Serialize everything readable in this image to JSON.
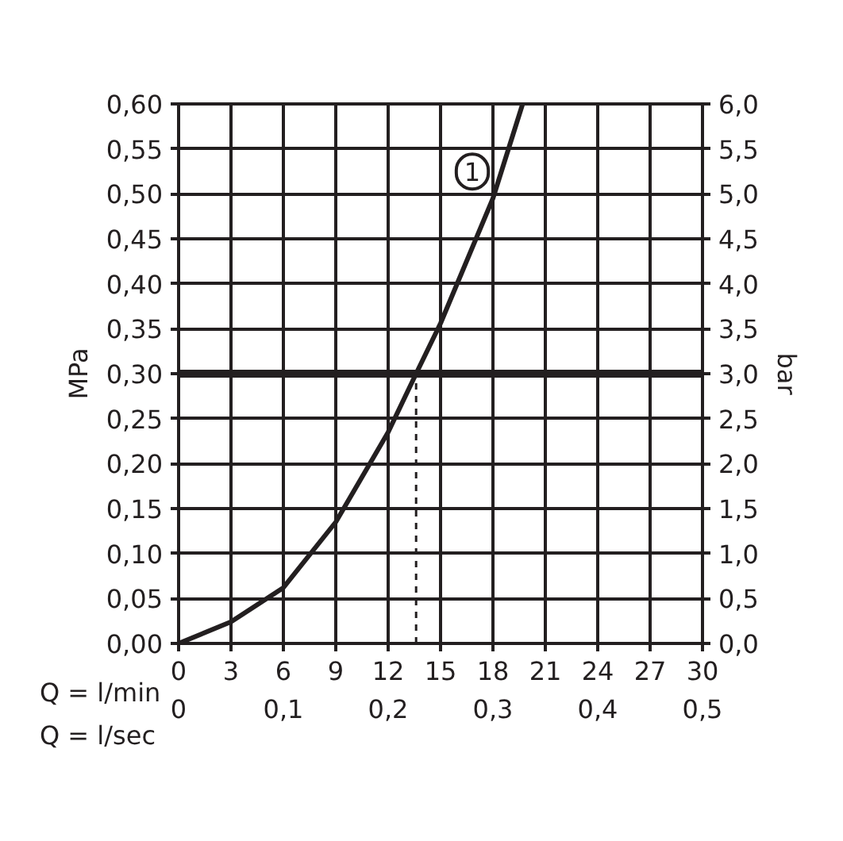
{
  "chart_data": {
    "type": "line",
    "x": [
      0,
      3,
      6,
      9,
      12,
      13.6,
      15,
      18,
      19.7
    ],
    "series": [
      {
        "color": "#231f20",
        "values": [
          0,
          0.024,
          0.062,
          0.135,
          0.235,
          0.3,
          0.356,
          0.495,
          0.6
        ]
      },
      {
        "color": "#231f20",
        "x": [
          13.6,
          13.6
        ],
        "values": [
          0,
          0.3
        ],
        "line_style": "dashed"
      }
    ],
    "xlabel": "Q = l/min",
    "ylabel": "MPa",
    "y2label": "bar",
    "x2label": "Q = l/sec",
    "xlim": [
      0,
      30
    ],
    "xticks": [
      0,
      3,
      6,
      9,
      12,
      15,
      18,
      21,
      24,
      27,
      30
    ],
    "x2lim": [
      0,
      0.5
    ],
    "x2ticks": [
      0,
      {
        "value": 0.1,
        "label": "0,1"
      },
      {
        "value": 0.2,
        "label": "0,2"
      },
      {
        "value": 0.3,
        "label": "0,3"
      },
      {
        "value": 0.4,
        "label": "0,4"
      },
      {
        "value": 0.5,
        "label": "0,5"
      }
    ],
    "ylim": [
      0,
      0.6
    ],
    "yticks": [
      {
        "value": 0,
        "label": "0,00"
      },
      {
        "value": 0.05,
        "label": "0,05"
      },
      {
        "value": 0.1,
        "label": "0,10"
      },
      {
        "value": 0.15,
        "label": "0,15"
      },
      {
        "value": 0.2,
        "label": "0,20"
      },
      {
        "value": 0.25,
        "label": "0,25"
      },
      {
        "value": 0.3,
        "label": "0,30"
      },
      {
        "value": 0.35,
        "label": "0,35"
      },
      {
        "value": 0.4,
        "label": "0,40"
      },
      {
        "value": 0.45,
        "label": "0,45"
      },
      {
        "value": 0.5,
        "label": "0,50"
      },
      {
        "value": 0.55,
        "label": "0,55"
      },
      {
        "value": 0.6,
        "label": "0,60"
      }
    ],
    "y2lim": [
      0,
      6
    ],
    "y2ticks": [
      {
        "value": 0,
        "label": "0,0"
      },
      {
        "value": 0.5,
        "label": "0,5"
      },
      {
        "value": 1,
        "label": "1,0"
      },
      {
        "value": 1.5,
        "label": "1,5"
      },
      {
        "value": 2,
        "label": "2,0"
      },
      {
        "value": 2.5,
        "label": "2,5"
      },
      {
        "value": 3,
        "label": "3,0"
      },
      {
        "value": 3.5,
        "label": "3,5"
      },
      {
        "value": 4,
        "label": "4,0"
      },
      {
        "value": 4.5,
        "label": "4,5"
      },
      {
        "value": 5,
        "label": "5,0"
      },
      {
        "value": 5.5,
        "label": "5,5"
      },
      {
        "value": 6,
        "label": "6,0"
      }
    ],
    "ref_lines": [
      {
        "axis": "y",
        "value": 0.3,
        "color": "#231f20"
      }
    ],
    "annotations": [
      {
        "text": "1",
        "x": 18,
        "y": 0.5
      }
    ],
    "grid": true,
    "marker": "none",
    "line_style": "solid"
  }
}
